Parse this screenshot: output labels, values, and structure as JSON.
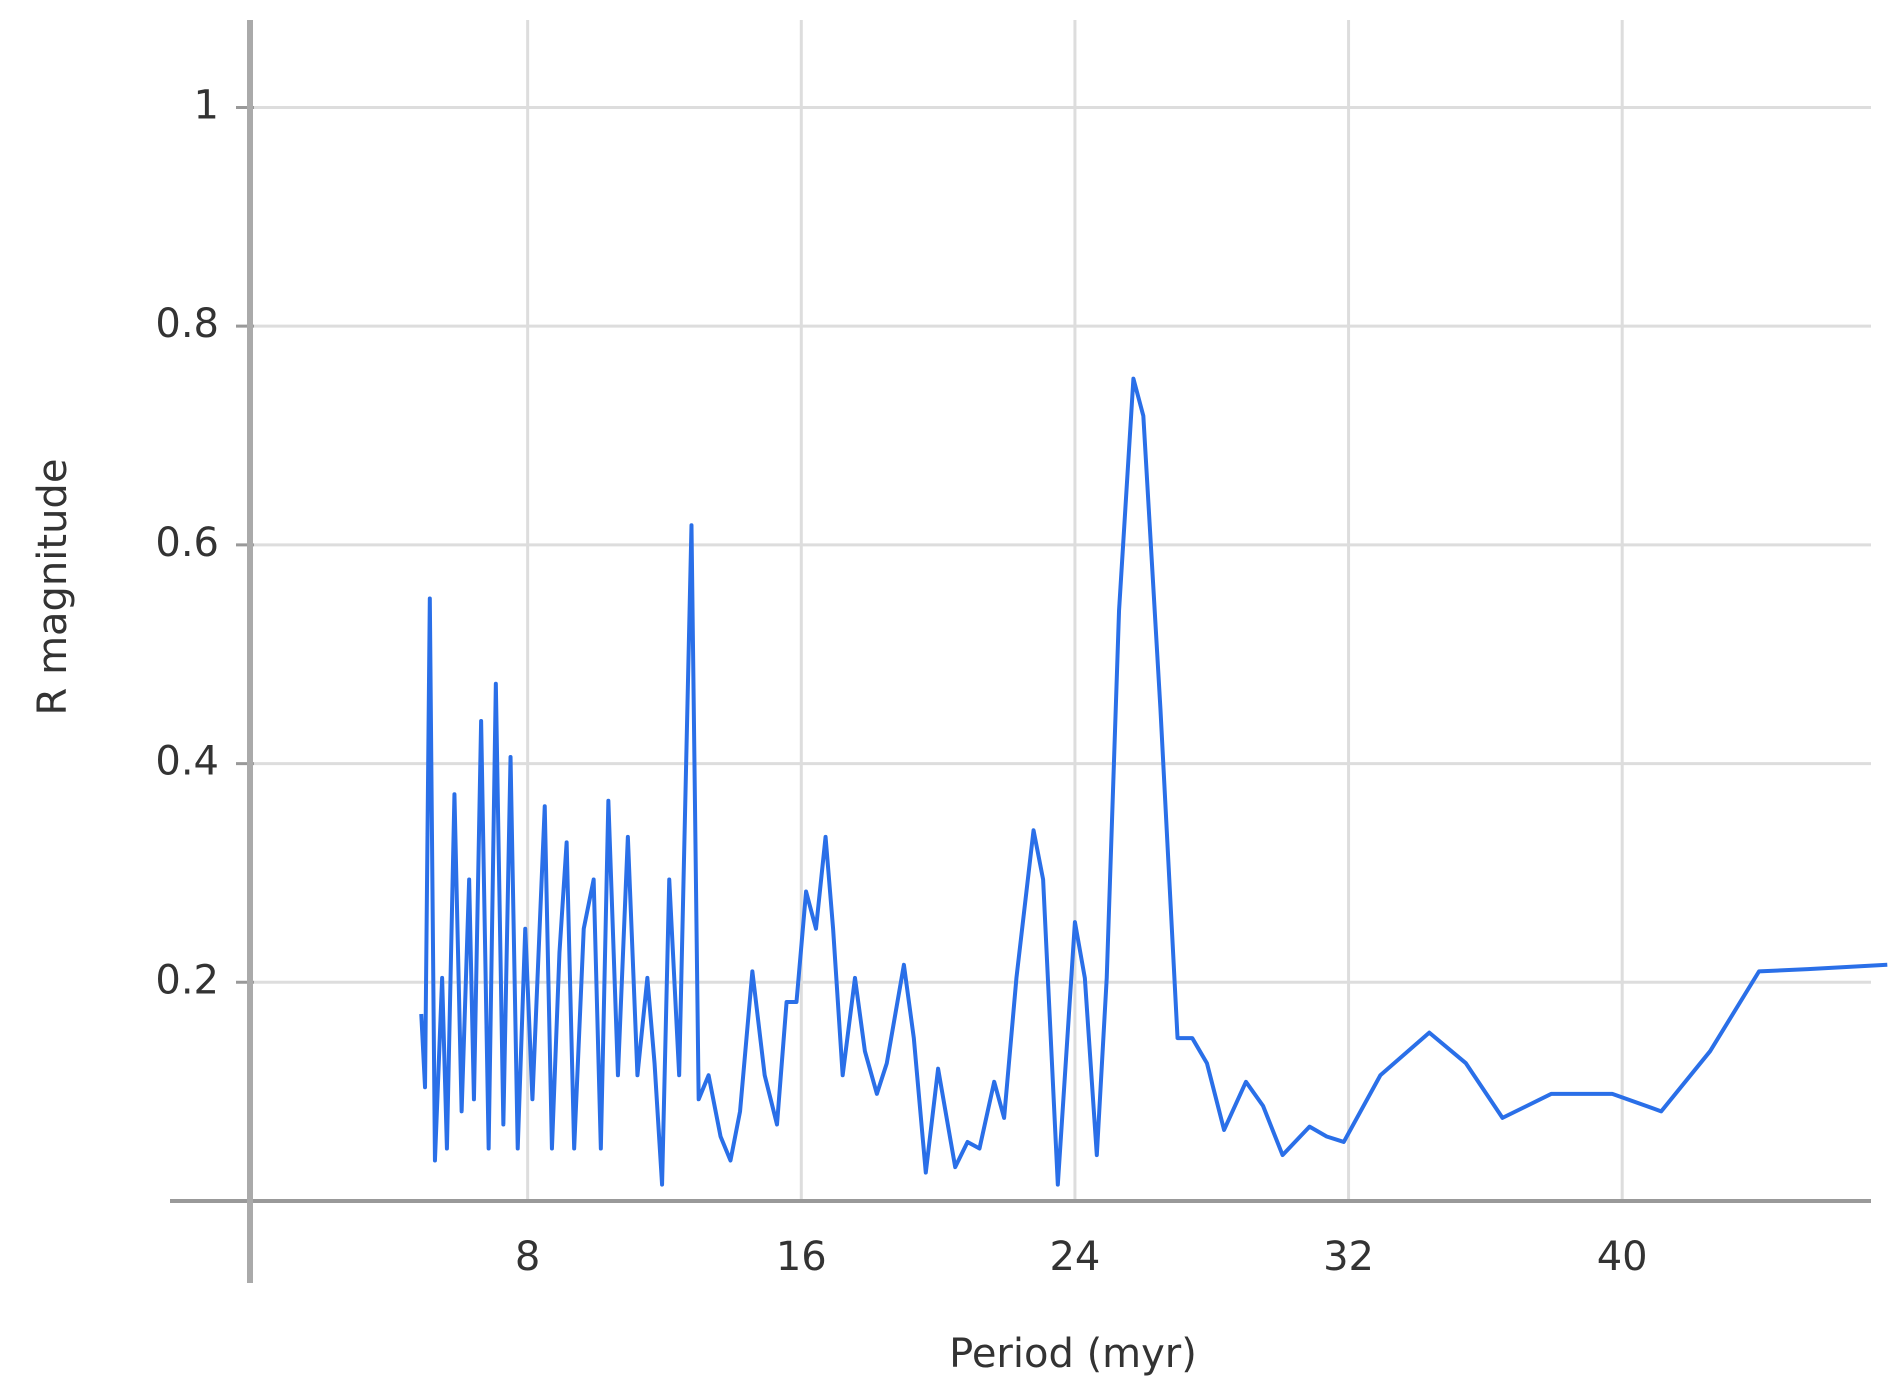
{
  "chart_data": {
    "type": "line",
    "xlabel": "Period (myr)",
    "ylabel": "R magnitude",
    "xlim": [
      0,
      47.8
    ],
    "xticks": [
      8,
      16,
      24,
      32,
      40
    ],
    "ylim": [
      0,
      1.08
    ],
    "yticks": [
      0.2,
      0.4,
      0.6,
      0.8,
      1
    ],
    "grid": true,
    "series": [
      {
        "color": "#2a6fe8",
        "x": [
          4.89,
          5.0,
          5.14,
          5.29,
          5.5,
          5.64,
          5.86,
          6.07,
          6.29,
          6.43,
          6.64,
          6.86,
          7.07,
          7.29,
          7.5,
          7.71,
          7.93,
          8.14,
          8.5,
          8.71,
          8.93,
          9.14,
          9.36,
          9.64,
          9.93,
          10.14,
          10.36,
          10.64,
          10.93,
          11.21,
          11.5,
          11.71,
          11.93,
          12.14,
          12.43,
          12.79,
          13.0,
          13.29,
          13.64,
          13.93,
          14.21,
          14.57,
          14.93,
          15.29,
          15.57,
          15.86,
          16.14,
          16.43,
          16.71,
          16.93,
          17.21,
          17.57,
          17.86,
          18.21,
          18.5,
          19.0,
          19.29,
          19.64,
          20.0,
          20.5,
          20.86,
          21.21,
          21.64,
          21.93,
          22.29,
          22.79,
          23.07,
          23.5,
          24.0,
          24.29,
          24.64,
          24.93,
          25.29,
          25.71,
          26.0,
          26.5,
          27.0,
          27.43,
          27.86,
          28.36,
          29.0,
          29.5,
          30.07,
          30.86,
          31.36,
          31.86,
          32.93,
          34.36,
          35.43,
          36.5,
          37.93,
          39.71,
          41.14,
          42.57,
          44.0,
          45.43,
          47.75
        ],
        "values": [
          0.171,
          0.104,
          0.551,
          0.037,
          0.204,
          0.048,
          0.372,
          0.082,
          0.294,
          0.093,
          0.439,
          0.048,
          0.473,
          0.07,
          0.406,
          0.048,
          0.249,
          0.093,
          0.361,
          0.048,
          0.227,
          0.328,
          0.048,
          0.249,
          0.294,
          0.048,
          0.366,
          0.115,
          0.333,
          0.115,
          0.204,
          0.126,
          0.015,
          0.294,
          0.115,
          0.618,
          0.093,
          0.115,
          0.059,
          0.037,
          0.082,
          0.21,
          0.115,
          0.07,
          0.182,
          0.182,
          0.283,
          0.249,
          0.333,
          0.249,
          0.115,
          0.204,
          0.137,
          0.098,
          0.126,
          0.216,
          0.149,
          0.026,
          0.121,
          0.031,
          0.054,
          0.048,
          0.109,
          0.076,
          0.204,
          0.339,
          0.294,
          0.015,
          0.255,
          0.204,
          0.042,
          0.204,
          0.54,
          0.752,
          0.718,
          0.45,
          0.149,
          0.149,
          0.126,
          0.065,
          0.109,
          0.087,
          0.042,
          0.068,
          0.059,
          0.054,
          0.115,
          0.154,
          0.126,
          0.076,
          0.098,
          0.098,
          0.082,
          0.137,
          0.21,
          0.212,
          0.216
        ]
      }
    ]
  }
}
